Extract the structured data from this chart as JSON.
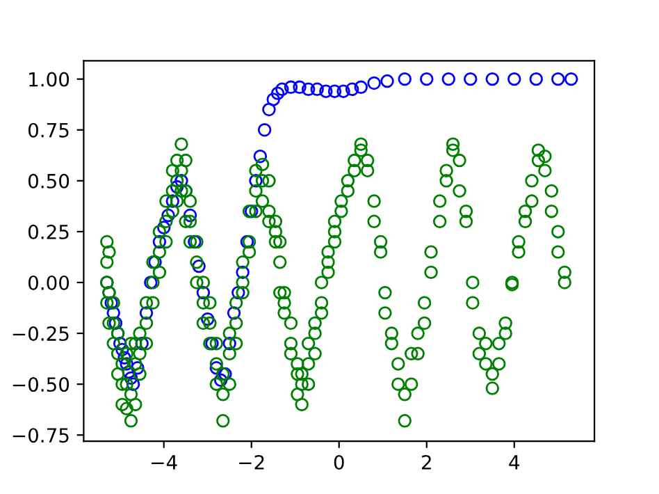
{
  "chart_data": {
    "type": "scatter",
    "marker": "circle",
    "grid": false,
    "legend": false,
    "xlim": [
      -5.83,
      5.83
    ],
    "ylim": [
      -0.78,
      1.09
    ],
    "xticks": [
      {
        "value": -4,
        "label": "−4"
      },
      {
        "value": -2,
        "label": "−2"
      },
      0,
      2,
      4
    ],
    "yticks": [
      {
        "value": -0.75,
        "label": "−0.75"
      },
      {
        "value": -0.5,
        "label": "−0.50"
      },
      {
        "value": -0.25,
        "label": "−0.25"
      },
      {
        "value": 0,
        "label": "0.00"
      },
      {
        "value": 0.25,
        "label": "0.25"
      },
      {
        "value": 0.5,
        "label": "0.50"
      },
      {
        "value": 0.75,
        "label": "0.75"
      },
      {
        "value": 1.0,
        "label": "1.00"
      }
    ],
    "series": [
      {
        "color": "#0000ff",
        "x": [
          -5.3,
          -5.25,
          -5.2,
          -5.15,
          -5.1,
          -5.05,
          -5.0,
          -4.95,
          -4.9,
          -4.85,
          -4.8,
          -4.75,
          -4.7,
          -4.6,
          -4.5,
          -4.4,
          -4.3,
          -4.2,
          -4.1,
          -4.0,
          -3.9,
          -3.8,
          -3.7,
          -3.6,
          -3.5,
          -3.4,
          -3.3,
          -3.2,
          -3.1,
          -3.0,
          -2.9,
          -2.8,
          -2.7,
          -2.6,
          -2.5,
          -2.4,
          -2.3,
          -2.2,
          -2.1,
          -2.0,
          -1.9,
          -1.8,
          -1.7,
          -1.6,
          -1.5,
          -1.4,
          -1.3,
          -1.1,
          -0.9,
          -0.7,
          -0.5,
          -0.3,
          -0.1,
          0.1,
          0.3,
          0.5,
          0.8,
          1.1,
          1.5,
          2.0,
          2.5,
          3.0,
          3.5,
          4.0,
          4.5,
          5.0,
          5.3
        ],
        "values": [
          0.0,
          -0.05,
          -0.1,
          -0.15,
          -0.2,
          -0.25,
          -0.3,
          -0.33,
          -0.37,
          -0.4,
          -0.44,
          -0.47,
          -0.5,
          -0.42,
          -0.3,
          -0.15,
          0.0,
          0.1,
          0.2,
          0.27,
          0.33,
          0.4,
          0.47,
          0.5,
          0.45,
          0.33,
          0.2,
          0.08,
          -0.05,
          -0.18,
          -0.3,
          -0.42,
          -0.48,
          -0.45,
          -0.3,
          -0.15,
          -0.05,
          0.05,
          0.2,
          0.35,
          0.5,
          0.62,
          0.75,
          0.85,
          0.9,
          0.93,
          0.95,
          0.96,
          0.96,
          0.95,
          0.95,
          0.94,
          0.94,
          0.94,
          0.95,
          0.96,
          0.98,
          0.99,
          1.0,
          1.0,
          1.0,
          1.0,
          1.0,
          1.0,
          1.0,
          1.0,
          1.0
        ]
      },
      {
        "color": "#008000",
        "x": [
          -5.3,
          -5.3,
          -5.3,
          -5.3,
          -5.25,
          -5.25,
          -5.25,
          -5.15,
          -5.15,
          -5.15,
          -5.05,
          -5.05,
          -5.05,
          -4.95,
          -4.95,
          -4.95,
          -4.85,
          -4.85,
          -4.85,
          -4.75,
          -4.75,
          -4.75,
          -4.65,
          -4.65,
          -4.65,
          -4.55,
          -4.55,
          -4.55,
          -4.4,
          -4.4,
          -4.4,
          -4.25,
          -4.25,
          -4.25,
          -4.1,
          -4.1,
          -4.1,
          -3.95,
          -3.95,
          -3.95,
          -3.8,
          -3.8,
          -3.8,
          -3.7,
          -3.7,
          -3.7,
          -3.6,
          -3.6,
          -3.6,
          -3.5,
          -3.5,
          -3.5,
          -3.4,
          -3.4,
          -3.4,
          -3.25,
          -3.25,
          -3.25,
          -3.1,
          -3.1,
          -3.1,
          -2.95,
          -2.95,
          -2.95,
          -2.8,
          -2.8,
          -2.8,
          -2.65,
          -2.65,
          -2.65,
          -2.5,
          -2.5,
          -2.5,
          -2.35,
          -2.35,
          -2.35,
          -2.2,
          -2.2,
          -2.2,
          -2.05,
          -2.05,
          -2.05,
          -1.9,
          -1.9,
          -1.9,
          -1.75,
          -1.75,
          -1.75,
          -1.6,
          -1.6,
          -1.6,
          -1.45,
          -1.45,
          -1.45,
          -1.35,
          -1.35,
          -1.35,
          -1.25,
          -1.25,
          -1.25,
          -1.1,
          -1.1,
          -1.1,
          -0.95,
          -0.95,
          -0.95,
          -0.85,
          -0.85,
          -0.85,
          -0.7,
          -0.7,
          -0.7,
          -0.55,
          -0.55,
          -0.55,
          -0.4,
          -0.4,
          -0.4,
          -0.25,
          -0.25,
          -0.25,
          -0.1,
          -0.1,
          -0.1,
          0.05,
          0.05,
          0.2,
          0.2,
          0.35,
          0.35,
          0.5,
          0.5,
          0.65,
          0.65,
          0.8,
          0.8,
          0.95,
          0.95,
          1.05,
          1.05,
          1.2,
          1.2,
          1.35,
          1.35,
          1.5,
          1.5,
          1.65,
          1.65,
          1.8,
          1.8,
          1.95,
          1.95,
          2.1,
          2.1,
          2.3,
          2.3,
          2.45,
          2.45,
          2.6,
          2.6,
          2.75,
          2.75,
          2.9,
          2.9,
          3.05,
          3.05,
          3.2,
          3.2,
          3.35,
          3.35,
          3.5,
          3.5,
          3.65,
          3.65,
          3.8,
          3.8,
          3.95,
          3.95,
          4.1,
          4.1,
          4.25,
          4.25,
          4.4,
          4.4,
          4.55,
          4.55,
          4.7,
          4.7,
          4.85,
          4.85,
          5.0,
          5.0,
          5.15,
          5.15
        ],
        "values": [
          0.2,
          0.1,
          0.0,
          -0.1,
          0.15,
          -0.05,
          -0.2,
          -0.1,
          -0.3,
          -0.2,
          -0.35,
          -0.45,
          -0.25,
          -0.5,
          -0.4,
          -0.6,
          -0.62,
          -0.5,
          -0.35,
          -0.68,
          -0.55,
          -0.3,
          -0.6,
          -0.4,
          -0.3,
          -0.45,
          -0.25,
          -0.35,
          -0.2,
          -0.1,
          -0.3,
          0.0,
          0.1,
          -0.1,
          0.15,
          0.25,
          0.05,
          0.3,
          0.4,
          0.2,
          0.45,
          0.55,
          0.35,
          0.6,
          0.5,
          0.4,
          0.68,
          0.55,
          0.45,
          0.6,
          0.45,
          0.3,
          0.4,
          0.3,
          0.2,
          0.2,
          0.1,
          0.0,
          0.0,
          -0.1,
          -0.2,
          -0.2,
          -0.3,
          -0.1,
          -0.4,
          -0.5,
          -0.3,
          -0.55,
          -0.45,
          -0.68,
          -0.5,
          -0.35,
          -0.25,
          -0.2,
          -0.1,
          -0.3,
          0.0,
          0.1,
          -0.05,
          0.2,
          0.35,
          0.15,
          0.45,
          0.55,
          0.35,
          0.58,
          0.4,
          0.5,
          0.5,
          0.35,
          0.3,
          0.3,
          0.2,
          0.25,
          0.1,
          -0.05,
          0.2,
          -0.05,
          -0.15,
          -0.1,
          -0.2,
          -0.3,
          -0.35,
          -0.45,
          -0.55,
          -0.4,
          -0.6,
          -0.5,
          -0.45,
          -0.4,
          -0.3,
          -0.5,
          -0.2,
          -0.25,
          -0.35,
          -0.1,
          0.0,
          -0.15,
          0.1,
          0.15,
          0.05,
          0.25,
          0.3,
          0.2,
          0.4,
          0.35,
          0.45,
          0.5,
          0.6,
          0.55,
          0.65,
          0.68,
          0.6,
          0.55,
          0.4,
          0.3,
          0.2,
          0.15,
          -0.05,
          -0.15,
          -0.25,
          -0.3,
          -0.4,
          -0.5,
          -0.55,
          -0.68,
          -0.5,
          -0.35,
          -0.35,
          -0.25,
          -0.2,
          -0.1,
          0.05,
          0.15,
          0.3,
          0.4,
          0.5,
          0.55,
          0.68,
          0.65,
          0.6,
          0.45,
          0.35,
          0.3,
          0.0,
          -0.1,
          -0.25,
          -0.35,
          -0.3,
          -0.4,
          -0.45,
          -0.52,
          -0.3,
          -0.4,
          -0.25,
          -0.2,
          0.0,
          -0.01,
          0.15,
          0.2,
          0.3,
          0.35,
          0.4,
          0.5,
          0.6,
          0.65,
          0.62,
          0.55,
          0.45,
          0.35,
          0.25,
          0.15,
          0.05,
          0.0
        ]
      }
    ]
  }
}
